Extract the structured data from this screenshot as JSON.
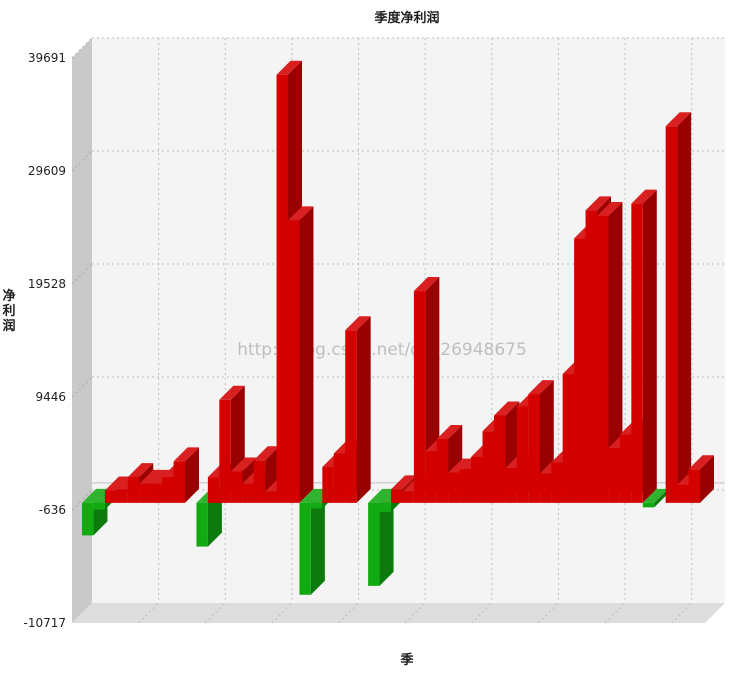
{
  "chart_data": {
    "type": "bar",
    "title": "季度净利润",
    "xlabel": "季",
    "ylabel": "净利润",
    "ylim": [
      -10717,
      39691
    ],
    "yticks": [
      39691,
      29609,
      19528,
      9446,
      -636,
      -10717
    ],
    "grid": true,
    "three_d": true,
    "colors": {
      "positive": "#d40000",
      "negative": "#11aa11",
      "wall": "#f4f4f4",
      "floor": "#dddddd"
    },
    "watermark": "http://blog.csdn.net/qq_26948675",
    "values": [
      -2900,
      -600,
      1100,
      1200,
      2300,
      1700,
      1700,
      2300,
      3700,
      0,
      -3900,
      2300,
      9200,
      2800,
      1700,
      3800,
      1000,
      38200,
      25200,
      -8200,
      -500,
      3200,
      4400,
      15400,
      0,
      -7400,
      -800,
      1200,
      1000,
      18900,
      4600,
      5700,
      2700,
      3000,
      4100,
      6400,
      7800,
      3100,
      8600,
      9700,
      2600,
      3600,
      11500,
      23600,
      26100,
      25600,
      4900,
      6100,
      26700,
      -400,
      0,
      33600,
      1600,
      3000
    ]
  }
}
